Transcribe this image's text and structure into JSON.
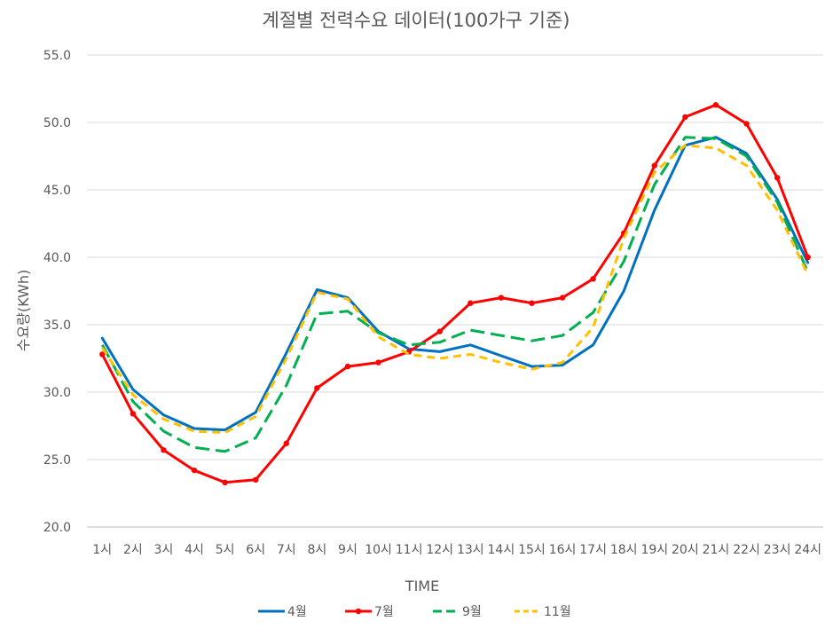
{
  "chart_data": {
    "type": "line",
    "title": "계절별 전력수요 데이터(100가구 기준)",
    "xlabel": "TIME",
    "ylabel": "수요량(KWh)",
    "ylim": [
      20,
      55
    ],
    "yticks": [
      "20.0",
      "25.0",
      "30.0",
      "35.0",
      "40.0",
      "45.0",
      "50.0",
      "55.0"
    ],
    "grid": true,
    "legend_position": "bottom",
    "categories": [
      "1시",
      "2시",
      "3시",
      "4시",
      "5시",
      "6시",
      "7시",
      "8시",
      "9시",
      "10시",
      "11시",
      "12시",
      "13시",
      "14시",
      "15시",
      "16시",
      "17시",
      "18시",
      "19시",
      "20시",
      "21시",
      "22시",
      "23시",
      "24시"
    ],
    "series": [
      {
        "name": "4월",
        "color": "#0070C0",
        "style": "solid",
        "marker": false,
        "values": [
          34.0,
          30.2,
          28.3,
          27.3,
          27.2,
          28.5,
          32.9,
          37.6,
          37.0,
          34.5,
          33.2,
          33.0,
          33.5,
          32.7,
          31.9,
          32.0,
          33.5,
          37.5,
          43.5,
          48.3,
          48.9,
          47.7,
          44.3,
          39.6
        ]
      },
      {
        "name": "7월",
        "color": "#FF0000",
        "style": "solid",
        "marker": true,
        "values": [
          32.8,
          28.4,
          25.7,
          24.2,
          23.3,
          23.5,
          26.2,
          30.3,
          31.9,
          32.2,
          33.0,
          34.5,
          36.6,
          37.0,
          36.6,
          37.0,
          38.4,
          41.8,
          46.8,
          50.4,
          51.3,
          49.9,
          45.9,
          40.0
        ]
      },
      {
        "name": "9월",
        "color": "#00B050",
        "style": "longdash",
        "marker": false,
        "values": [
          33.5,
          29.3,
          27.1,
          25.9,
          25.6,
          26.6,
          30.5,
          35.8,
          36.0,
          34.4,
          33.5,
          33.7,
          34.6,
          34.2,
          33.8,
          34.2,
          35.9,
          39.7,
          45.4,
          48.9,
          48.8,
          47.5,
          44.1,
          38.9
        ]
      },
      {
        "name": "11월",
        "color": "#FFC000",
        "style": "dash",
        "marker": false,
        "values": [
          33.3,
          29.8,
          28.0,
          27.1,
          27.0,
          28.2,
          32.5,
          37.4,
          36.9,
          34.1,
          32.8,
          32.5,
          32.8,
          32.2,
          31.7,
          32.2,
          34.8,
          41.4,
          46.3,
          48.3,
          48.1,
          46.8,
          43.5,
          38.7
        ]
      }
    ]
  }
}
